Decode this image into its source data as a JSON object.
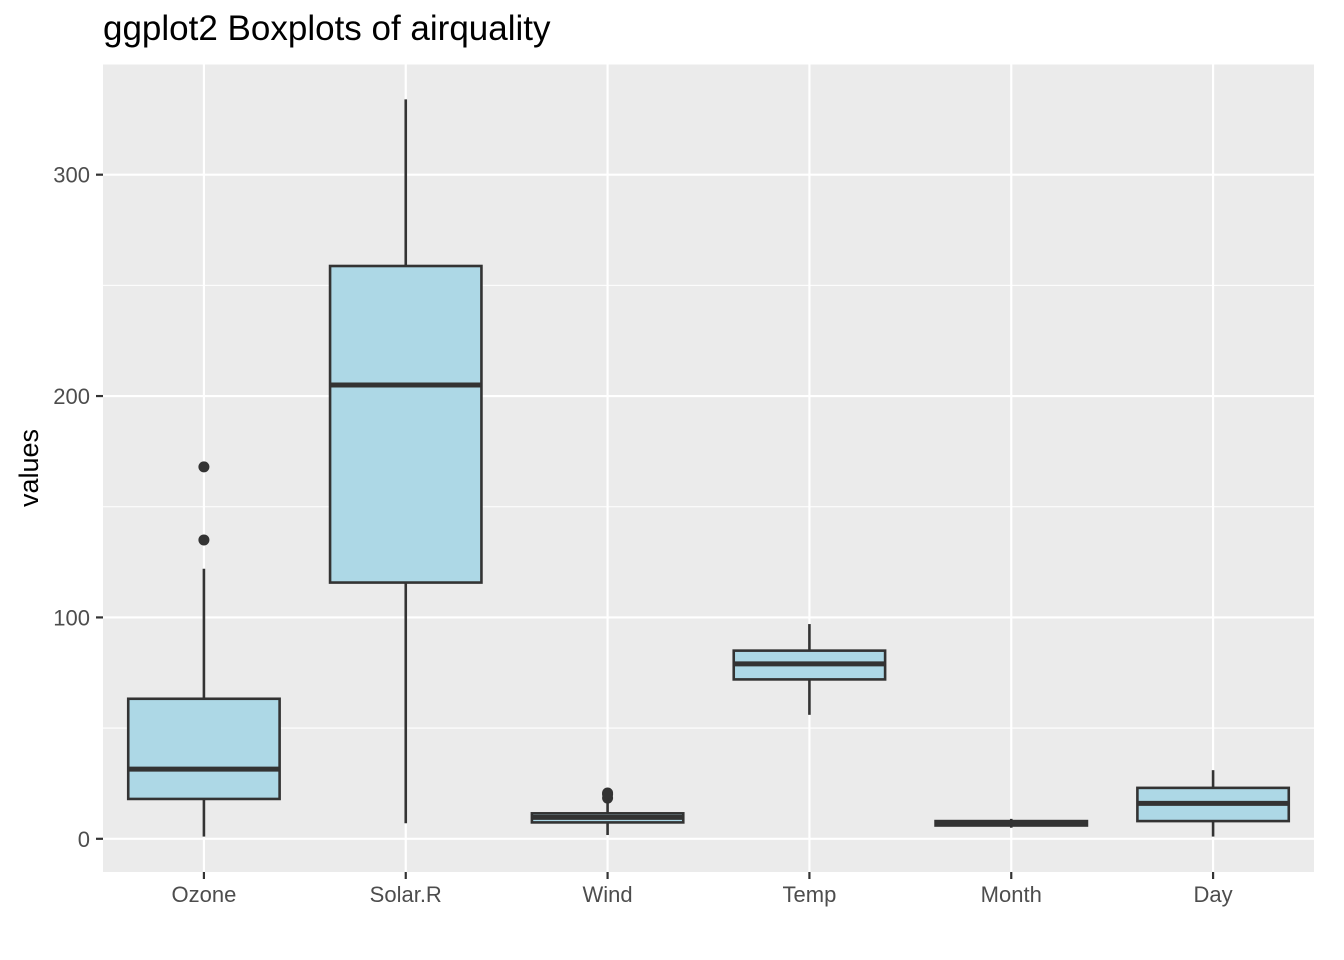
{
  "chart_data": {
    "type": "boxplot",
    "title": "ggplot2 Boxplots of airquality",
    "xlabel": "",
    "ylabel": "values",
    "ylim": [
      -15,
      350
    ],
    "y_ticks": [
      0,
      100,
      200,
      300
    ],
    "grid": true,
    "colors": {
      "panel": "#ebebeb",
      "grid": "#ffffff",
      "box_fill": "#add8e6",
      "box_stroke": "#333333"
    },
    "categories": [
      "Ozone",
      "Solar.R",
      "Wind",
      "Temp",
      "Month",
      "Day"
    ],
    "boxes": [
      {
        "min": 1,
        "q1": 18,
        "median": 31.5,
        "q3": 63.25,
        "max": 122,
        "outliers": [
          135,
          168
        ]
      },
      {
        "min": 7,
        "q1": 115.75,
        "median": 205,
        "q3": 258.75,
        "max": 334,
        "outliers": []
      },
      {
        "min": 1.7,
        "q1": 7.4,
        "median": 9.7,
        "q3": 11.5,
        "max": 16.6,
        "outliers": [
          18.4,
          20.1,
          20.7
        ]
      },
      {
        "min": 56,
        "q1": 72,
        "median": 79,
        "q3": 85,
        "max": 97,
        "outliers": []
      },
      {
        "min": 5,
        "q1": 6,
        "median": 7,
        "q3": 8,
        "max": 9,
        "outliers": []
      },
      {
        "min": 1,
        "q1": 8,
        "median": 16,
        "q3": 23,
        "max": 31,
        "outliers": []
      }
    ]
  }
}
